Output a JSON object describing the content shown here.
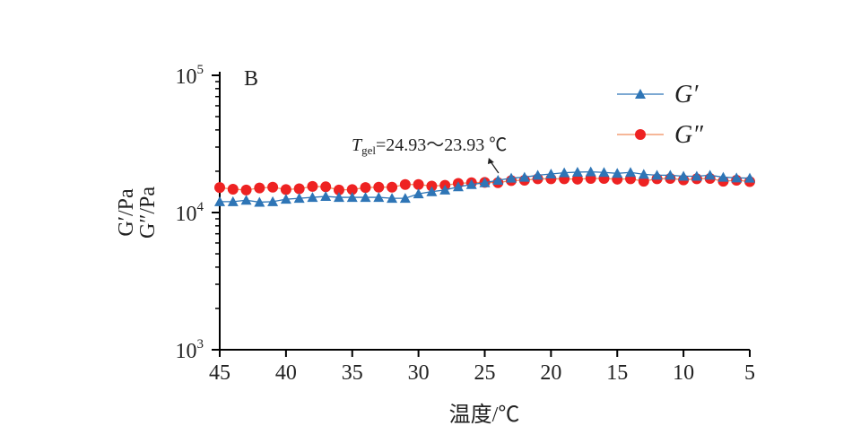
{
  "chart_data": {
    "type": "line",
    "panel_label": "B",
    "xlabel": "温度/℃",
    "ylabel_line1": "G′/Pa",
    "ylabel_line2": "G″/Pa",
    "x_reversed": true,
    "xlim": [
      45,
      5
    ],
    "ylim": [
      1000,
      100000
    ],
    "y_scale": "log",
    "x_ticks": [
      "45",
      "40",
      "35",
      "30",
      "25",
      "20",
      "15",
      "10",
      "5"
    ],
    "y_ticks": [
      {
        "base": "10",
        "exp": "3",
        "value": 1000
      },
      {
        "base": "10",
        "exp": "4",
        "value": 10000
      },
      {
        "base": "10",
        "exp": "5",
        "value": 100000
      }
    ],
    "legend_placement": "top-right",
    "annotation": {
      "prefix": "T",
      "sub": "gel",
      "text": "=24.93～23.93 ℃",
      "points_to_x": 24.5
    },
    "x": [
      45,
      44,
      43,
      42,
      41,
      40,
      39,
      38,
      37,
      36,
      35,
      34,
      33,
      32,
      31,
      30,
      29,
      28,
      27,
      26,
      25,
      24,
      23,
      22,
      21,
      20,
      19,
      18,
      17,
      16,
      15,
      14,
      13,
      12,
      11,
      10,
      9,
      8,
      7,
      6,
      5
    ],
    "series": [
      {
        "name": "G′",
        "color": "#2e75b6",
        "marker": "triangle",
        "values": [
          12000,
          12000,
          12300,
          11900,
          12000,
          12500,
          12700,
          12900,
          13100,
          12900,
          12900,
          12900,
          12900,
          12700,
          12700,
          13700,
          14200,
          14600,
          15400,
          16000,
          16500,
          17200,
          17800,
          18100,
          18700,
          19100,
          19500,
          19700,
          19800,
          19600,
          19300,
          19600,
          19000,
          18700,
          18700,
          18400,
          18400,
          18700,
          18100,
          17900,
          17800
        ]
      },
      {
        "name": "G″",
        "color": "#ee2222",
        "line_color": "#f08c5a",
        "marker": "circle",
        "values": [
          15200,
          14800,
          14600,
          15100,
          15300,
          14700,
          14900,
          15500,
          15400,
          14600,
          14700,
          15200,
          15300,
          15300,
          16000,
          16000,
          15600,
          15800,
          16300,
          16500,
          16600,
          16500,
          17100,
          17200,
          17600,
          17600,
          17600,
          17500,
          17700,
          17700,
          17500,
          17600,
          16900,
          17600,
          17700,
          17300,
          17600,
          17700,
          16900,
          17200,
          16800
        ]
      }
    ]
  }
}
